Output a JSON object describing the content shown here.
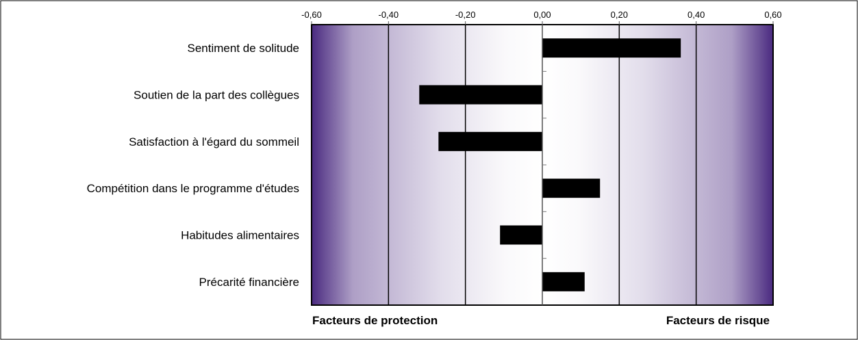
{
  "chart_data": {
    "type": "bar",
    "orientation": "horizontal",
    "categories": [
      "Sentiment de solitude",
      "Soutien de la part des collègues",
      "Satisfaction à l'égard du sommeil",
      "Compétition dans le programme d'études",
      "Habitudes alimentaires",
      "Précarité financière"
    ],
    "values": [
      0.36,
      -0.32,
      -0.27,
      0.15,
      -0.11,
      0.11
    ],
    "xlim": [
      -0.6,
      0.6
    ],
    "x_ticks": [
      -0.6,
      -0.4,
      -0.2,
      0.0,
      0.2,
      0.4,
      0.6
    ],
    "x_tick_labels": [
      "-0,60",
      "-0,40",
      "-0,20",
      "0,00",
      "0,20",
      "0,40",
      "0,60"
    ],
    "x_axis_position": "top",
    "grid": true,
    "legend": "none",
    "bar_color": "#000000",
    "gradient_edge_color": "#4a2a80",
    "gradient_center_color": "#ffffff",
    "left_footer": "Facteurs de protection",
    "right_footer": "Facteurs de risque"
  }
}
